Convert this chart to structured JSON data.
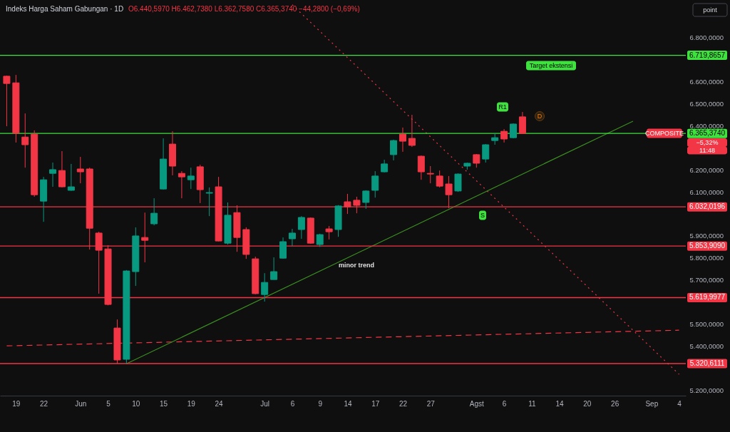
{
  "chart_data": {
    "type": "candlestick",
    "title": "Indeks Harga Saham Gabungan · 1D",
    "subtitle": "O6.440,5970 H6.462,7380 L6.362,7580 C6.365,3740 −44,2800 (−0,69%)",
    "categories": [
      null,
      "19",
      null,
      null,
      "22",
      null,
      null,
      null,
      "Jun",
      null,
      null,
      "5",
      null,
      null,
      "10",
      null,
      null,
      "15",
      null,
      null,
      "19",
      null,
      null,
      "24",
      null,
      null,
      null,
      null,
      "Jul",
      null,
      null,
      "6",
      null,
      null,
      "9",
      null,
      null,
      "14",
      null,
      null,
      "17",
      null,
      null,
      "22",
      null,
      null,
      "27",
      null,
      null,
      null,
      null,
      "Agst",
      null,
      null,
      "6",
      null,
      null,
      "11",
      null,
      null,
      "14",
      null,
      null,
      "20",
      null,
      null,
      "26",
      null,
      null,
      null,
      "Sep",
      null,
      null,
      "4"
    ],
    "ohlc": [
      [
        6625,
        6628,
        6398,
        6592
      ],
      [
        6595,
        6631,
        6324,
        6366
      ],
      [
        6349,
        6456,
        6210,
        6314
      ],
      [
        6362,
        6379,
        6078,
        6087
      ],
      [
        6058,
        6168,
        5964,
        6155
      ],
      [
        6184,
        6233,
        6123,
        6201
      ],
      [
        6197,
        6285,
        6120,
        6123
      ],
      [
        6107,
        6227,
        6105,
        6123
      ],
      [
        6204,
        6259,
        6139,
        6191
      ],
      [
        6204,
        6210,
        5838,
        5935
      ],
      [
        5913,
        5919,
        5638,
        5835
      ],
      [
        5841,
        5858,
        5585,
        5589
      ],
      [
        5482,
        5521,
        5320,
        5337
      ],
      [
        5340,
        5745,
        5320,
        5741
      ],
      [
        5738,
        5939,
        5673,
        5900
      ],
      [
        5893,
        6006,
        5780,
        5880
      ],
      [
        5955,
        6071,
        5948,
        6003
      ],
      [
        6113,
        6343,
        6110,
        6249
      ],
      [
        6317,
        6375,
        6175,
        6217
      ],
      [
        6184,
        6194,
        6071,
        6168
      ],
      [
        6155,
        6210,
        6113,
        6172
      ],
      [
        6214,
        6223,
        6049,
        6110
      ],
      [
        6094,
        6120,
        5990,
        6097
      ],
      [
        6123,
        6168,
        5875,
        5877
      ],
      [
        5867,
        6052,
        5861,
        5994
      ],
      [
        6006,
        6039,
        5828,
        5893
      ],
      [
        5929,
        5939,
        5796,
        5816
      ],
      [
        5796,
        5806,
        5635,
        5638
      ],
      [
        5634,
        5731,
        5602,
        5689
      ],
      [
        5702,
        5803,
        5702,
        5738
      ],
      [
        5799,
        5893,
        5797,
        5874
      ],
      [
        5887,
        5932,
        5854,
        5913
      ],
      [
        5929,
        5990,
        5887,
        5984
      ],
      [
        5981,
        5984,
        5864,
        5867
      ],
      [
        5861,
        5910,
        5850,
        5906
      ],
      [
        5932,
        5945,
        5884,
        5919
      ],
      [
        5929,
        6040,
        5896,
        6036
      ],
      [
        6055,
        6091,
        6000,
        6032
      ],
      [
        6062,
        6078,
        6003,
        6039
      ],
      [
        6052,
        6107,
        6023,
        6104
      ],
      [
        6107,
        6194,
        6074,
        6172
      ],
      [
        6191,
        6246,
        6188,
        6227
      ],
      [
        6269,
        6337,
        6243,
        6333
      ],
      [
        6362,
        6392,
        6282,
        6330
      ],
      [
        6343,
        6450,
        6304,
        6311
      ],
      [
        6262,
        6265,
        6155,
        6191
      ],
      [
        6184,
        6217,
        6139,
        6181
      ],
      [
        6172,
        6197,
        6120,
        6126
      ],
      [
        6136,
        6172,
        6026,
        6087
      ],
      [
        6104,
        6184,
        6100,
        6181
      ],
      [
        6217,
        6233,
        6201,
        6230
      ],
      [
        6269,
        6272,
        6210,
        6230
      ],
      [
        6249,
        6317,
        6233,
        6314
      ],
      [
        6333,
        6366,
        6314,
        6346
      ],
      [
        6375,
        6385,
        6324,
        6340
      ],
      [
        6346,
        6411,
        6343,
        6408
      ],
      [
        6440.597,
        6462.738,
        6362.758,
        6365.374
      ],
      null,
      null,
      null,
      null,
      null,
      null,
      null,
      null,
      null,
      null,
      null,
      null,
      null,
      null,
      null,
      null,
      null
    ],
    "colors": [
      "#f23645",
      "#f23645",
      "#f23645",
      "#f23645",
      "#089981",
      "#089981",
      "#f23645",
      "#089981",
      "#f23645",
      "#f23645",
      "#f23645",
      "#f23645",
      "#f23645",
      "#089981",
      "#089981",
      "#f23645",
      "#089981",
      "#089981",
      "#f23645",
      "#f23645",
      "#089981",
      "#f23645",
      "#089981",
      "#f23645",
      "#089981",
      "#f23645",
      "#f23645",
      "#f23645",
      "#089981",
      "#089981",
      "#089981",
      "#089981",
      "#089981",
      "#f23645",
      "#089981",
      "#f23645",
      "#089981",
      "#f23645",
      "#f23645",
      "#089981",
      "#089981",
      "#089981",
      "#089981",
      "#f23645",
      "#f23645",
      "#f23645",
      "#f23645",
      "#f23645",
      "#f23645",
      "#089981",
      "#089981",
      "#f23645",
      "#089981",
      "#089981",
      "#f23645",
      "#089981",
      "#f23645",
      null,
      null,
      null,
      null,
      null,
      null,
      null,
      null,
      null,
      null,
      null,
      null,
      null,
      null,
      null,
      null,
      null
    ],
    "series": [
      {
        "type": "line",
        "values": [
          null,
          null,
          null,
          null,
          null,
          null,
          null,
          null,
          null,
          null,
          null,
          null,
          null,
          null,
          null,
          null,
          null,
          null,
          null,
          null,
          null,
          null,
          null,
          null,
          null,
          null,
          null,
          null,
          null,
          null,
          null,
          6949,
          null,
          null,
          null,
          null,
          null,
          null,
          null,
          null,
          null,
          null,
          null,
          null,
          null,
          null,
          null,
          null,
          null,
          null,
          null,
          null,
          null,
          null,
          null,
          null,
          null,
          null,
          null,
          null,
          null,
          null,
          null,
          null,
          null,
          null,
          null,
          null,
          null,
          null,
          null,
          null,
          null,
          5272
        ],
        "color": "#f23645",
        "line_style": "dotted"
      },
      {
        "type": "line",
        "values": [
          5401,
          null,
          null,
          null,
          null,
          null,
          null,
          null,
          null,
          null,
          null,
          null,
          null,
          null,
          null,
          null,
          null,
          null,
          null,
          null,
          null,
          null,
          null,
          null,
          null,
          null,
          null,
          null,
          null,
          null,
          null,
          null,
          null,
          null,
          null,
          null,
          null,
          null,
          null,
          null,
          null,
          null,
          null,
          null,
          null,
          null,
          null,
          null,
          null,
          null,
          null,
          null,
          null,
          null,
          null,
          null,
          null,
          null,
          null,
          null,
          null,
          null,
          null,
          null,
          null,
          null,
          null,
          null,
          null,
          null,
          null,
          null,
          null,
          5472
        ],
        "color": "#f23645",
        "line_style": "dashed"
      },
      {
        "type": "line",
        "values": [
          null,
          null,
          null,
          null,
          null,
          null,
          null,
          null,
          null,
          null,
          null,
          null,
          null,
          5320,
          null,
          null,
          null,
          null,
          null,
          null,
          null,
          null,
          null,
          null,
          null,
          null,
          null,
          null,
          null,
          null,
          null,
          null,
          null,
          null,
          null,
          null,
          null,
          null,
          null,
          null,
          null,
          null,
          null,
          null,
          null,
          null,
          null,
          null,
          null,
          null,
          null,
          null,
          null,
          null,
          null,
          null,
          null,
          null,
          null,
          null,
          null,
          null,
          null,
          null,
          null,
          null,
          null,
          null,
          6421,
          null,
          null,
          null,
          null,
          null
        ],
        "color": "#3b8c22",
        "line_style": "solid"
      }
    ],
    "ref_lines": [
      {
        "axis": "y",
        "value": 6719.8657,
        "label": "6.719,8657",
        "color": "#3fe13f"
      },
      {
        "axis": "y",
        "value": 6365.374,
        "label": "6.365,3740",
        "color": "#3fe13f"
      },
      {
        "axis": "y",
        "value": 6032.0196,
        "label": "6.032,0196",
        "color": "#f23645"
      },
      {
        "axis": "y",
        "value": 5853.909,
        "label": "5.853,9090",
        "color": "#f23645"
      },
      {
        "axis": "y",
        "value": 5619.9977,
        "label": "5.619,9977",
        "color": "#f23645"
      },
      {
        "axis": "y",
        "value": 5320.6111,
        "label": "5.320,6111",
        "color": "#f23645"
      }
    ],
    "annotations": [
      "Target ekstensi",
      "R1",
      "D",
      "S",
      "minor trend",
      "COMPOSITE",
      "−5,32%",
      "11:48",
      "point"
    ],
    "ylim": [
      5175,
      6971
    ],
    "yticks": [
      {
        "value": 6800,
        "label": "6.800,0000"
      },
      {
        "value": 6600,
        "label": "6.600,0000"
      },
      {
        "value": 6500,
        "label": "6.500,0000"
      },
      {
        "value": 6400,
        "label": "6.400,0000"
      },
      {
        "value": 6200,
        "label": "6.200,0000"
      },
      {
        "value": 6100,
        "label": "6.100,0000"
      },
      {
        "value": 5900,
        "label": "5.900,0000"
      },
      {
        "value": 5800,
        "label": "5.800,0000"
      },
      {
        "value": 5700,
        "label": "5.700,0000"
      },
      {
        "value": 5500,
        "label": "5.500,0000"
      },
      {
        "value": 5400,
        "label": "5.400,0000"
      },
      {
        "value": 5200,
        "label": "5.200,0000"
      }
    ]
  }
}
